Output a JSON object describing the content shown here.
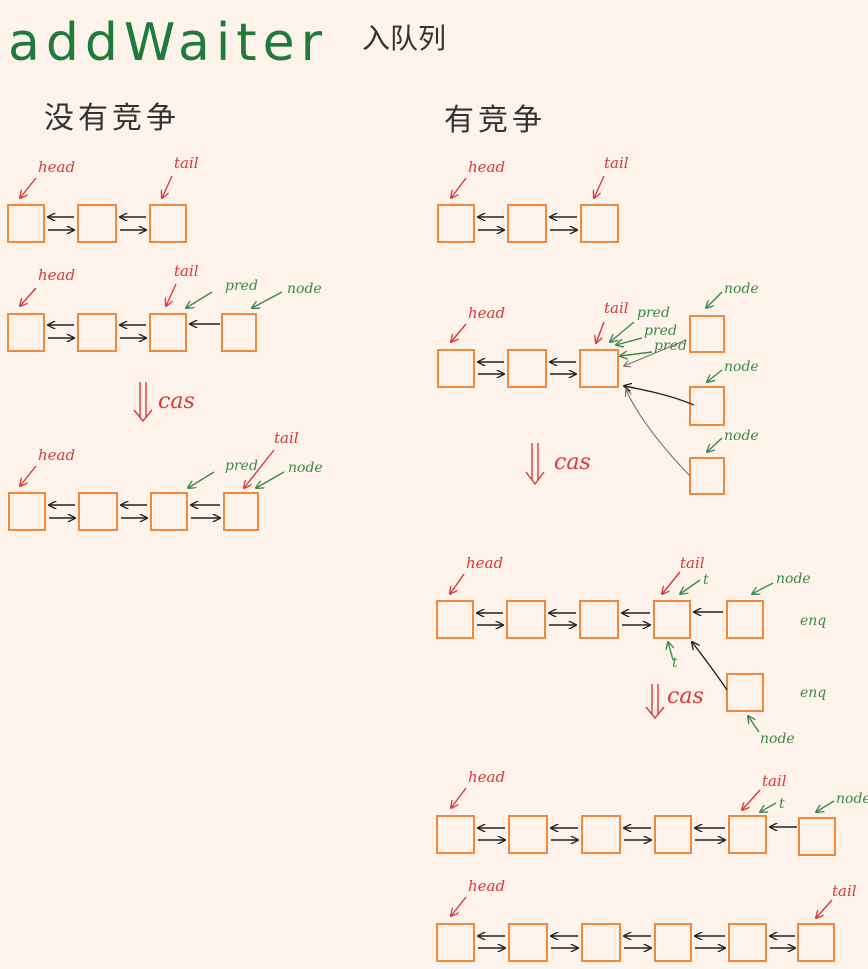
{
  "title": "addWaiter",
  "subtitle": "入队列",
  "sections": {
    "left": "没有竞争",
    "right": "有竞争"
  },
  "labels": {
    "head": "head",
    "tail": "tail",
    "pred": "pred",
    "node": "node",
    "t": "t",
    "enq": "enq",
    "cas": "cas"
  },
  "colors": {
    "background": "#fdf3ea",
    "box": "#f08a3c",
    "title": "#1f7a3c",
    "red_label": "#d93a3a",
    "green_label": "#3a8a4a",
    "arrow": "#222222"
  }
}
